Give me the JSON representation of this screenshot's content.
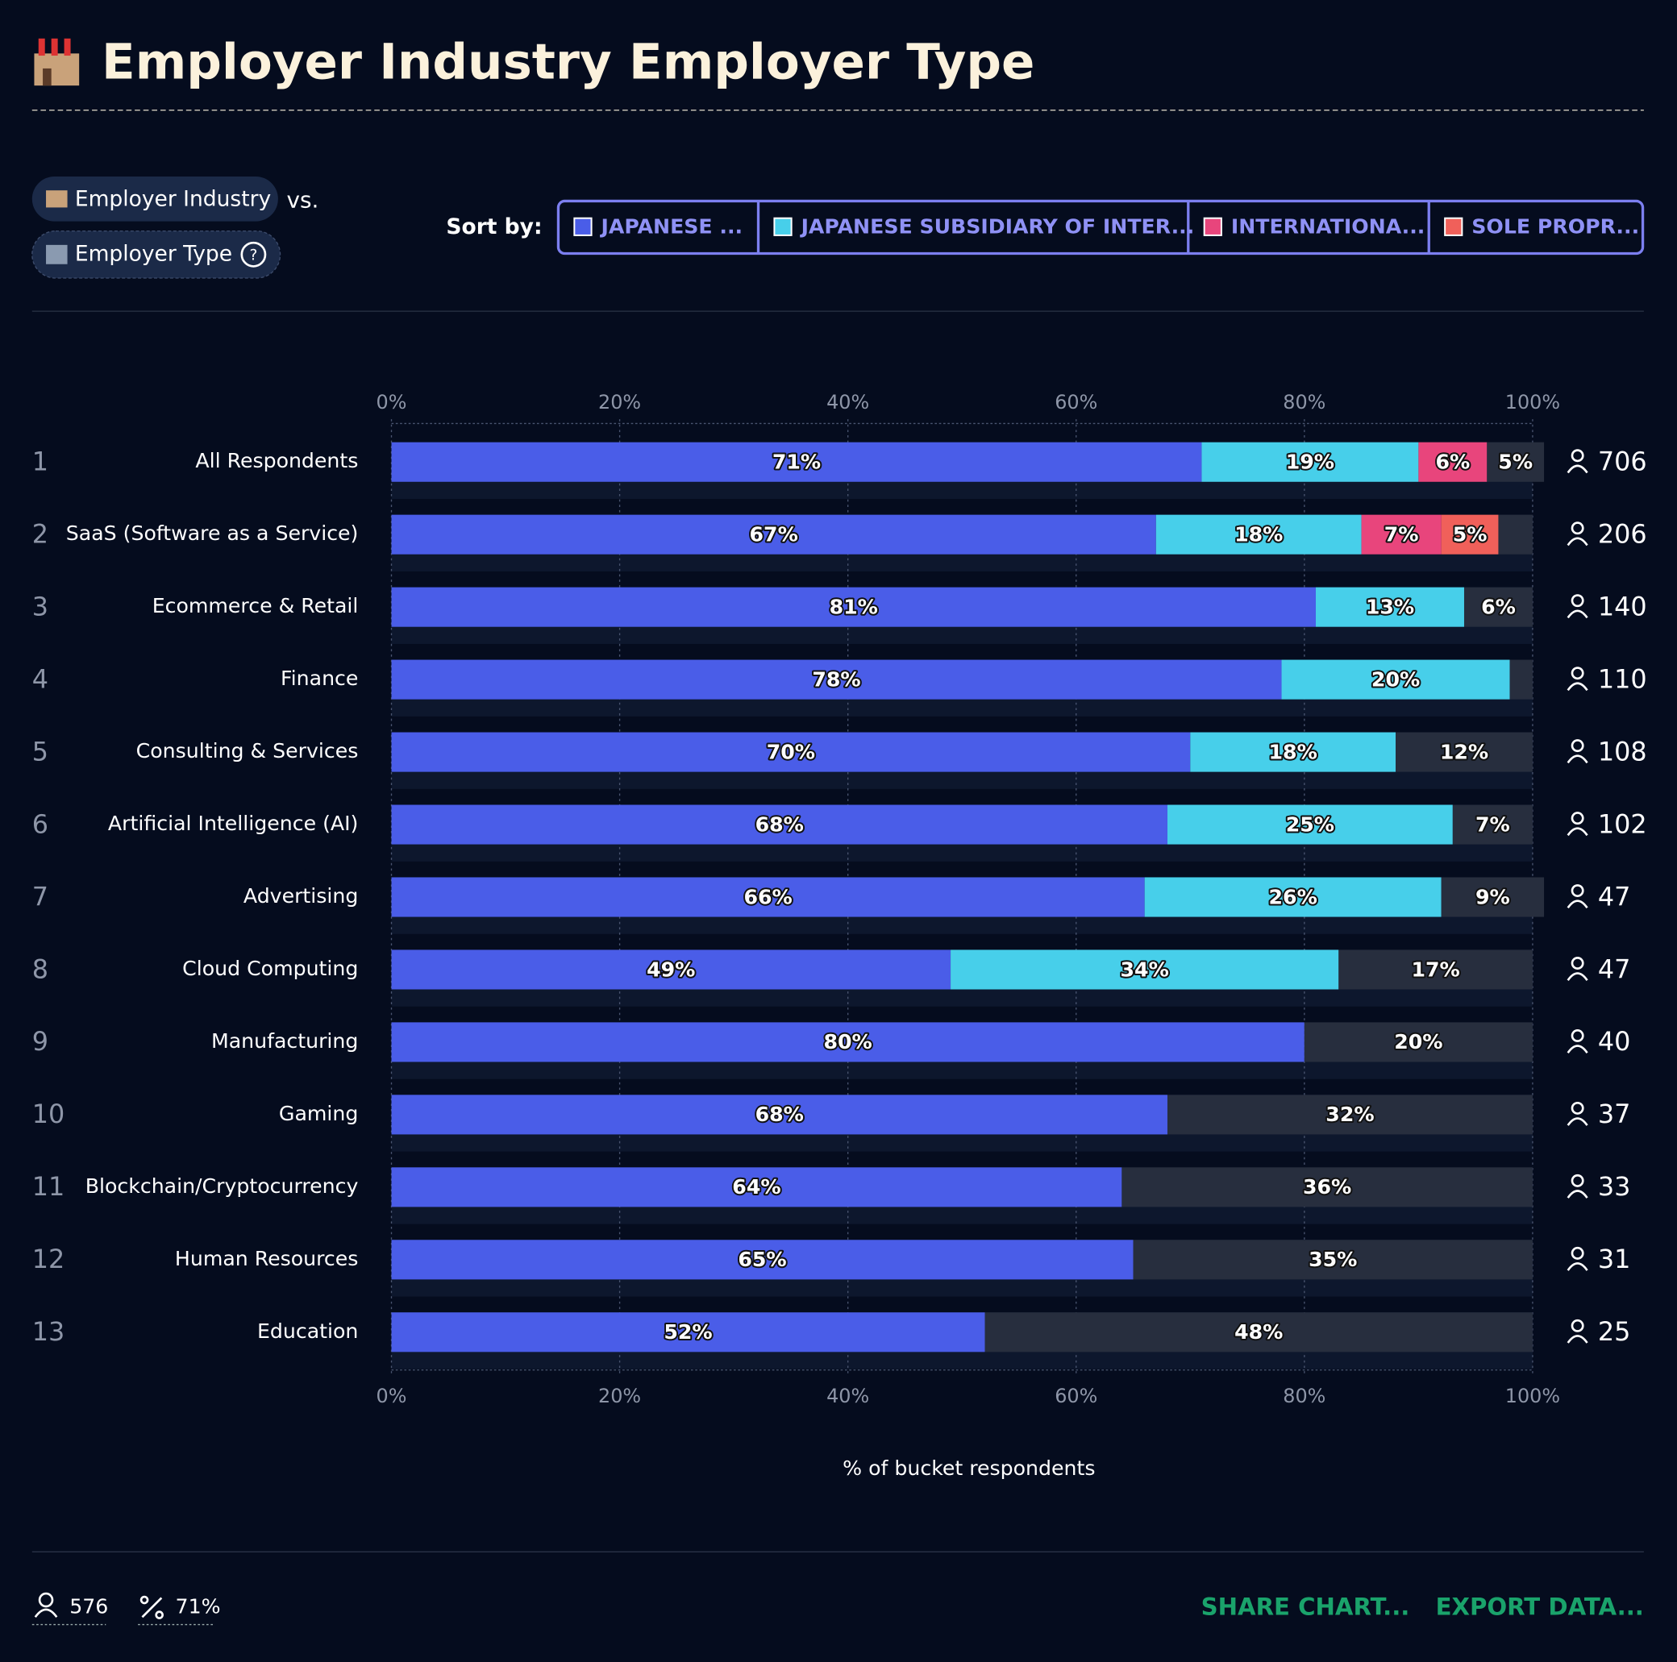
{
  "chart_data": {
    "type": "bar",
    "orientation": "horizontal",
    "stacked": true,
    "title": "Employer Industry Employer Type",
    "x_label": "% of bucket respondents",
    "categories": [
      "All Respondents",
      "SaaS (Software as a Service)",
      "Ecommerce & Retail",
      "Finance",
      "Consulting & Services",
      "Artificial Intelligence (AI)",
      "Advertising",
      "Cloud Computing",
      "Manufacturing",
      "Gaming",
      "Blockchain/Cryptocurrency",
      "Human Resources",
      "Education"
    ],
    "row_numbers": [
      1,
      2,
      3,
      4,
      5,
      6,
      7,
      8,
      9,
      10,
      11,
      12,
      13
    ],
    "respondents": [
      706,
      206,
      140,
      110,
      108,
      102,
      47,
      47,
      40,
      37,
      33,
      31,
      25
    ],
    "series": [
      {
        "name": "JAPANESE ...",
        "color": "#4a5de8",
        "values": [
          71,
          67,
          81,
          78,
          70,
          68,
          66,
          49,
          80,
          68,
          64,
          65,
          52
        ],
        "value_labels": [
          "71%",
          "67%",
          "81%",
          "78%",
          "70%",
          "68%",
          "66%",
          "49%",
          "80%",
          "68%",
          "64%",
          "65%",
          "52%"
        ]
      },
      {
        "name": "JAPANESE SUBSIDIARY OF INTER...",
        "color": "#47cfea",
        "values": [
          19,
          18,
          13,
          20,
          18,
          25,
          26,
          34,
          null,
          null,
          null,
          null,
          null
        ],
        "value_labels": [
          "19%",
          "18%",
          "13%",
          "20%",
          "18%",
          "25%",
          "26%",
          "34%",
          null,
          null,
          null,
          null,
          null
        ]
      },
      {
        "name": "INTERNATIONA...",
        "color": "#e8457c",
        "values": [
          6,
          7,
          null,
          null,
          null,
          null,
          null,
          null,
          null,
          null,
          null,
          null,
          null
        ],
        "value_labels": [
          "6%",
          "7%",
          null,
          null,
          null,
          null,
          null,
          null,
          null,
          null,
          null,
          null,
          null
        ]
      },
      {
        "name": "SOLE PROPR...",
        "color": "#f0605a",
        "values": [
          null,
          5,
          null,
          null,
          null,
          null,
          null,
          null,
          null,
          null,
          null,
          null,
          null
        ],
        "value_labels": [
          null,
          "5%",
          null,
          null,
          null,
          null,
          null,
          null,
          null,
          null,
          null,
          null,
          null
        ]
      },
      {
        "color": "#272e3e",
        "values": [
          5,
          3,
          6,
          2,
          12,
          7,
          9,
          17,
          20,
          32,
          36,
          35,
          48
        ],
        "value_labels": [
          "5%",
          null,
          "6%",
          null,
          "12%",
          "7%",
          "9%",
          "17%",
          "20%",
          "32%",
          "36%",
          "35%",
          "48%"
        ]
      }
    ],
    "xlim": [
      0,
      100
    ],
    "xticks": [
      {
        "value": 0,
        "label": "0%"
      },
      {
        "value": 20,
        "label": "20%"
      },
      {
        "value": 40,
        "label": "40%"
      },
      {
        "value": 60,
        "label": "60%"
      },
      {
        "value": 80,
        "label": "80%"
      },
      {
        "value": 100,
        "label": "100%"
      }
    ],
    "grid": true
  },
  "controls": {
    "industry_chip": "Employer Industry",
    "vs": "vs.",
    "type_chip": "Employer Type",
    "help": "?",
    "sort_label": "Sort by:"
  },
  "footer": {
    "respondents": "576",
    "percent": "71%",
    "share": "SHARE CHART...",
    "export": "EXPORT DATA..."
  }
}
